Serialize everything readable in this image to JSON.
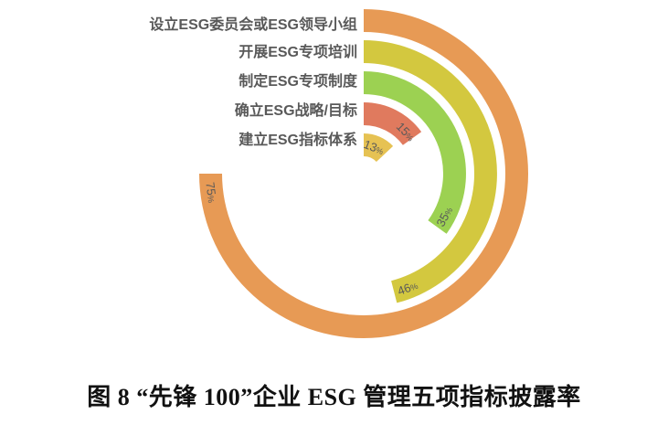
{
  "caption": {
    "text": "图 8  “先锋 100”企业 ESG 管理五项指标披露率"
  },
  "chart_data": {
    "type": "radial-bar",
    "title": "图 8 “先锋 100”企业 ESG 管理五项指标披露率",
    "categories": [
      "设立ESG委员会或ESG领导小组",
      "开展ESG专项培训",
      "制定ESG专项制度",
      "确立ESG战略/目标",
      "建立ESG指标体系"
    ],
    "values": [
      75,
      46,
      35,
      15,
      13
    ],
    "value_labels": [
      "75%",
      "46%",
      "35%",
      "15%",
      "13%"
    ],
    "colors": [
      "#e79a55",
      "#d3c83f",
      "#9cd152",
      "#e07a5e",
      "#e6c253"
    ],
    "value_label_color": "#595959",
    "category_label_color": "#595959",
    "max_value": 100,
    "full_circle_deg": 360,
    "start_angle_deg": 0,
    "direction": "clockwise",
    "legend": "none",
    "grid": "off",
    "background": "#ffffff"
  }
}
